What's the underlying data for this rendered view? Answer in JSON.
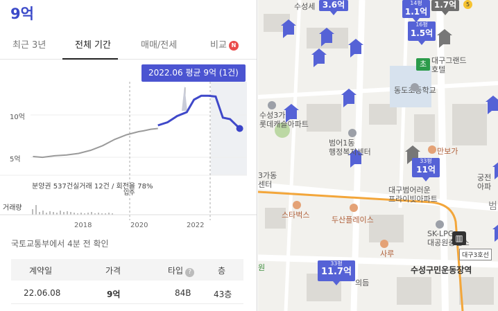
{
  "header": {
    "price": "9억"
  },
  "tabs": [
    {
      "label": "최근 3년"
    },
    {
      "label": "전체 기간"
    },
    {
      "label": "매매/전세"
    },
    {
      "label": "비교",
      "badge": "N"
    }
  ],
  "chart": {
    "tooltip": "2022.06 평균 9억 (1건)",
    "summary": "분양권 537건실거래 12건 / 회전율 78%",
    "move_in_label": "입주",
    "volume_label": "거래량",
    "y_ticks": [
      "10억",
      "5억"
    ],
    "x_ticks": [
      "2018",
      "2020",
      "2022"
    ]
  },
  "chart_data": {
    "type": "line",
    "ylabel": "",
    "xlabel": "",
    "series": [
      {
        "name": "분양권",
        "x": [
          2014.6,
          2015.0,
          2015.5,
          2016.0,
          2016.5,
          2017.0,
          2017.5,
          2018.0,
          2018.5,
          2019.0,
          2019.2,
          2019.5,
          2019.8
        ],
        "y": [
          5.4,
          5.3,
          5.5,
          5.6,
          5.8,
          6.2,
          6.8,
          7.6,
          8.2,
          8.6,
          8.7,
          8.9,
          9.0
        ]
      },
      {
        "name": "실거래",
        "x": [
          2019.8,
          2020.2,
          2020.6,
          2021.0,
          2021.3,
          2021.6,
          2021.9,
          2022.2,
          2022.5,
          2022.8,
          2023.0,
          2023.2
        ],
        "y": [
          9.4,
          9.8,
          10.6,
          11.1,
          12.7,
          13.2,
          13.2,
          13.1,
          10.4,
          10.2,
          9.6,
          9.0
        ]
      }
    ],
    "ylim": [
      3,
      15
    ],
    "xlim": [
      2014.5,
      2023.5
    ]
  },
  "update_note": "국토교통부에서 4분 전 확인",
  "table": {
    "headers": [
      "계약일",
      "가격",
      "타입",
      "층"
    ],
    "help_icon": "question-icon",
    "rows": [
      [
        "22.06.08",
        "9억",
        "84B",
        "43층"
      ]
    ]
  },
  "map": {
    "colors": {
      "marker": "#5562d6",
      "road": "#f3a63a",
      "building": "#dcdad5"
    },
    "labels": {
      "suseongse": "수성세",
      "suseong_lotte": "수성3가\n롯데캐슬아파트",
      "beomeo1": "범어1동\n행정복지센터",
      "dongdo_school": "동도초등학교",
      "daegu_grand": "대구그랜드\n호텔",
      "manbunga": "만보가",
      "daegu_beomeo": "대구범어러운\n프라이빗아파트",
      "gagadong": "3가동\n센터",
      "starbucks": "스타벅스",
      "doosan": "두산플레이스",
      "sku_lpg": "SK-LPG\n대공원충전소",
      "sanu": "사루",
      "uidum": "의듬",
      "suseong_station": "수성구민운동장역",
      "gungjeon": "궁전\n아파",
      "beom": "범",
      "won": "원",
      "cho": "초"
    },
    "markers": [
      {
        "area": "",
        "value": "3.6억"
      },
      {
        "area": "14평",
        "value": "1.1억"
      },
      {
        "area": "",
        "value": "1.7억"
      },
      {
        "area": "16평",
        "value": "1.5억"
      },
      {
        "area": "33평",
        "value": "11억"
      },
      {
        "area": "33평",
        "value": "11.7억"
      }
    ],
    "metro": {
      "line": "대구3호선",
      "line_num": "5"
    }
  }
}
